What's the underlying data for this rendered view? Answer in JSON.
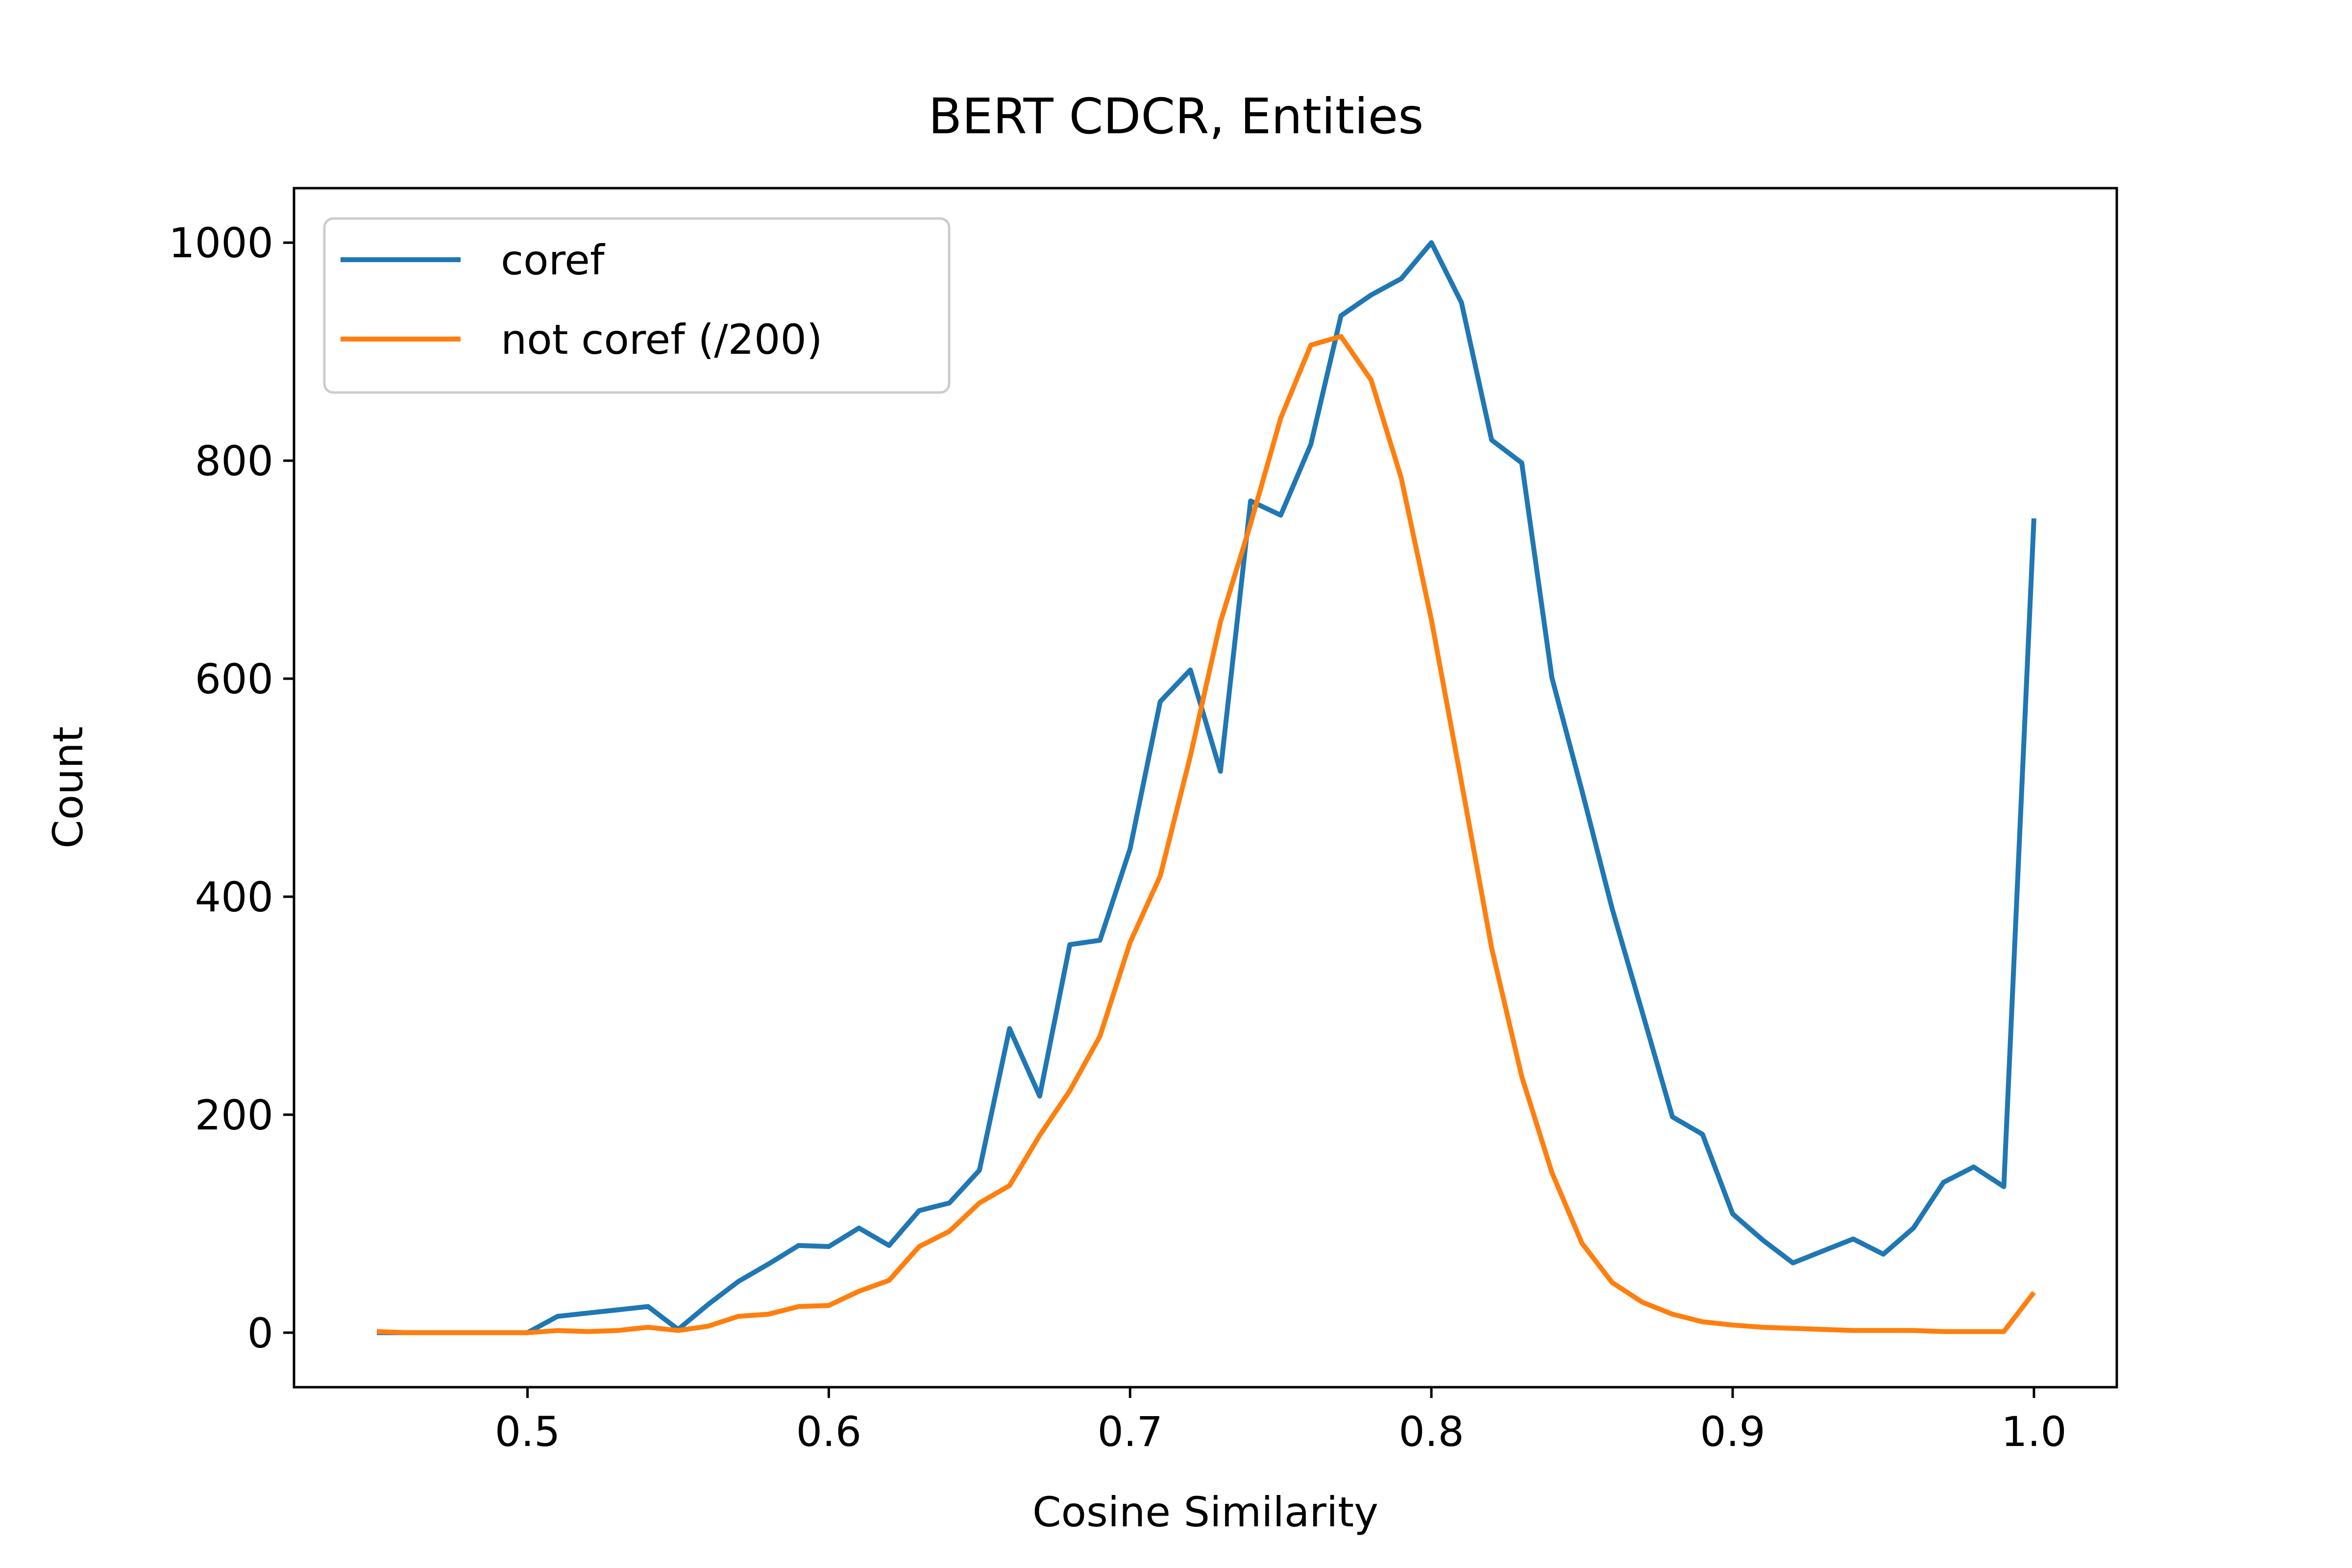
{
  "chart_data": {
    "type": "line",
    "title": "BERT CDCR, Entities",
    "xlabel": "Cosine Similarity",
    "ylabel": "Count",
    "xlim": [
      0.4225,
      1.0275
    ],
    "ylim": [
      -50,
      1050
    ],
    "xticks": [
      "0.5",
      "0.6",
      "0.7",
      "0.8",
      "0.9",
      "1.0"
    ],
    "yticks": [
      "0",
      "200",
      "400",
      "600",
      "800",
      "1000"
    ],
    "grid": false,
    "legend_position": "top-left",
    "x": [
      0.45,
      0.46,
      0.47,
      0.48,
      0.49,
      0.5,
      0.51,
      0.52,
      0.53,
      0.54,
      0.55,
      0.56,
      0.57,
      0.58,
      0.59,
      0.6,
      0.61,
      0.62,
      0.63,
      0.64,
      0.65,
      0.66,
      0.67,
      0.68,
      0.69,
      0.7,
      0.71,
      0.72,
      0.73,
      0.74,
      0.75,
      0.76,
      0.77,
      0.78,
      0.79,
      0.8,
      0.81,
      0.82,
      0.83,
      0.84,
      0.85,
      0.86,
      0.87,
      0.88,
      0.89,
      0.9,
      0.91,
      0.92,
      0.93,
      0.94,
      0.95,
      0.96,
      0.97,
      0.98,
      0.99,
      1.0
    ],
    "series": [
      {
        "name": "coref",
        "color": "#1f77b4",
        "values": [
          0,
          0,
          0,
          0,
          0,
          0,
          15,
          18,
          21,
          24,
          3,
          26,
          47,
          63,
          80,
          79,
          96,
          80,
          112,
          119,
          149,
          279,
          217,
          356,
          360,
          444,
          579,
          608,
          515,
          763,
          750,
          815,
          933,
          952,
          967,
          1000,
          945,
          819,
          798,
          601,
          497,
          389,
          294,
          198,
          182,
          109,
          85,
          64,
          75,
          86,
          72,
          96,
          138,
          152,
          134,
          747
        ]
      },
      {
        "name": "not coref (/200)",
        "color": "#ff7f0e",
        "values": [
          1,
          0,
          0,
          0,
          0,
          0,
          2,
          1,
          2,
          5,
          2,
          6,
          15,
          17,
          24,
          25,
          38,
          48,
          79,
          93,
          119,
          135,
          181,
          222,
          272,
          358,
          419,
          529,
          652,
          742,
          839,
          906,
          914,
          874,
          784,
          654,
          505,
          353,
          235,
          147,
          82,
          46,
          28,
          17,
          10,
          7,
          5,
          4,
          3,
          2,
          2,
          2,
          1,
          1,
          1,
          37
        ]
      }
    ]
  }
}
